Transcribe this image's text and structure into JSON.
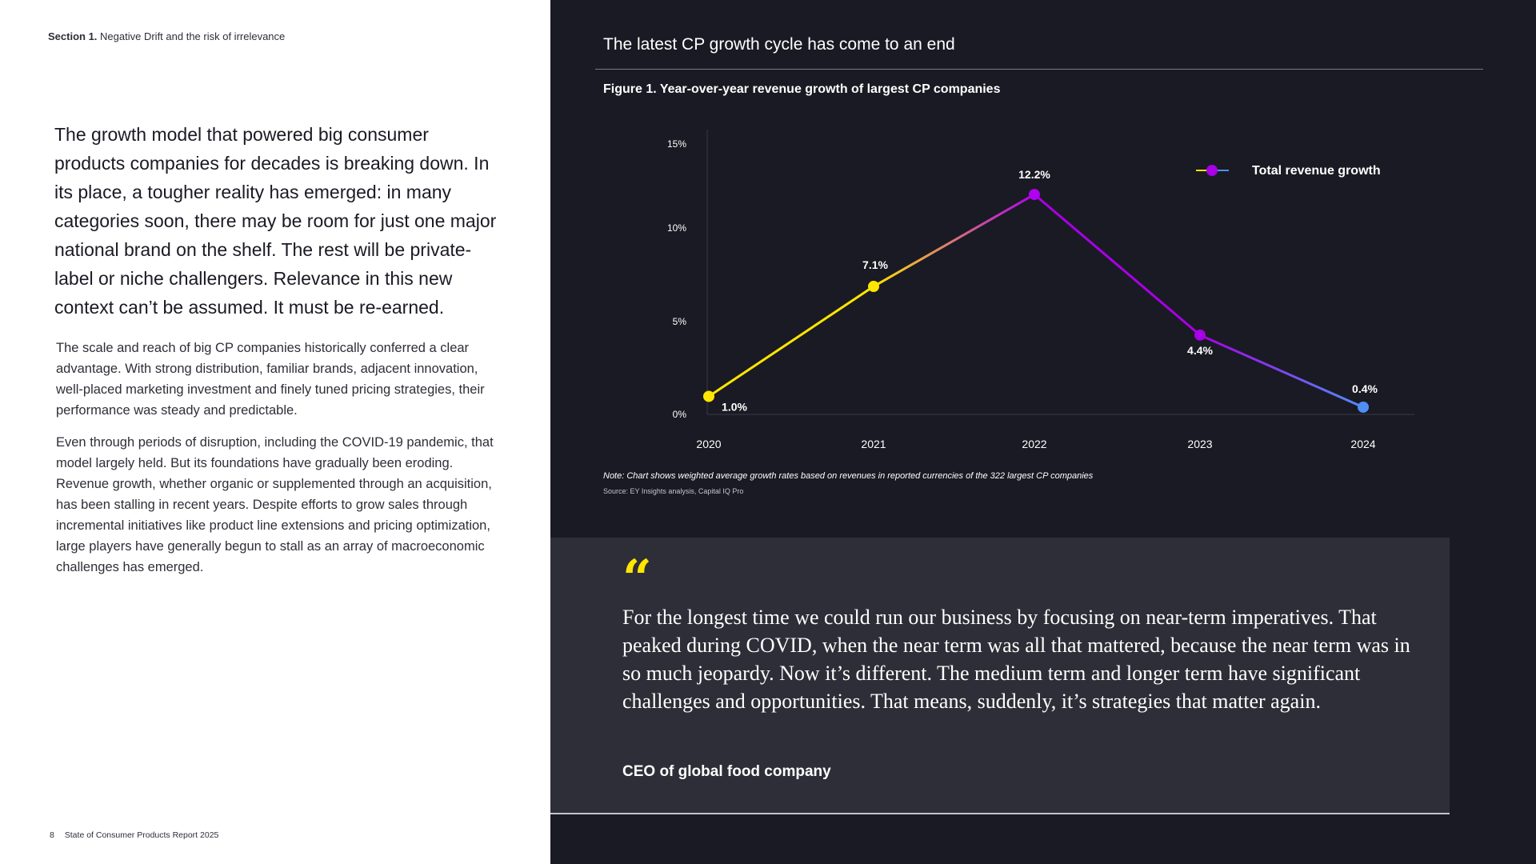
{
  "left": {
    "section_label_bold": "Section 1.",
    "section_label_rest": "Negative Drift and the risk of irrelevance",
    "lede": "The growth model that powered big consumer products companies for decades is breaking down. In its place, a tougher reality has emerged: in many categories soon, there may be room for just one major national brand on the shelf. The rest will be private-label or niche challengers. Relevance in this new context can’t be assumed. It must be re-earned.",
    "paragraph_1": "The scale and reach of big CP companies historically conferred a clear advantage. With strong distribution, familiar brands, adjacent innovation, well-placed marketing investment and finely tuned pricing strategies, their performance was steady and predictable.",
    "paragraph_2": "Even through periods of disruption, including the COVID-19 pandemic, that model largely held. But its foundations have gradually been eroding. Revenue growth, whether organic or supplemented through an acquisition, has been stalling in recent years. Despite efforts to grow sales through incremental initiatives like product line extensions and pricing optimization, large players have generally begun to stall as an array of macroeconomic challenges has emerged.",
    "footer_page": "8",
    "footer_title": "State of Consumer Products Report 2025"
  },
  "right": {
    "header_title": "The latest CP growth cycle has come to an end",
    "figure_title": "Figure 1. Year-over-year revenue growth of largest CP companies",
    "note": "Note: Chart shows weighted average growth rates based on revenues in reported currencies of the 322 largest CP companies",
    "source": "Source: EY Insights analysis, Capital IQ Pro"
  },
  "quote": {
    "mark": "“",
    "text": "For the longest time we could run our business by focusing on near-term imperatives. That peaked during COVID, when the near term was all that mattered, because the near term was in so much jeopardy. Now it’s different. The medium term and longer term have significant challenges and opportunities. That means, suddenly, it’s strategies that matter again.",
    "author": "CEO of global food company"
  },
  "chart_data": {
    "type": "line",
    "title": "Figure 1. Year-over-year revenue growth of largest CP companies",
    "x": [
      "2020",
      "2021",
      "2022",
      "2023",
      "2024"
    ],
    "series": [
      {
        "name": "Total revenue growth",
        "values": [
          1.0,
          7.1,
          12.2,
          4.4,
          0.4
        ],
        "labels": [
          "1.0%",
          "7.1%",
          "12.2%",
          "4.4%",
          "0.4%"
        ],
        "point_colors": [
          "#ffe600",
          "#ffe600",
          "#b000f0",
          "#a800e6",
          "#4f8ef7"
        ]
      }
    ],
    "y_ticks": [
      "0%",
      "5%",
      "10%",
      "15%"
    ],
    "ylim": [
      0,
      15
    ],
    "xlabel": "",
    "ylabel": "",
    "legend_position": "top-right",
    "colors": {
      "yellow": "#ffe600",
      "purple": "#a800e6",
      "blue": "#4f8ef7"
    }
  }
}
